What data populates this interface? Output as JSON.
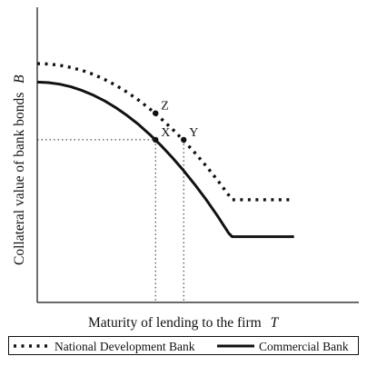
{
  "chart_data": {
    "type": "line",
    "title": "",
    "xlabel": "Maturity of lending to the firm",
    "xlabel_symbol": "T",
    "ylabel": "Collateral value of bank bonds",
    "ylabel_symbol": "B",
    "axis_ticks": false,
    "grid": false,
    "legend_position": "bottom",
    "series": [
      {
        "name": "National Development Bank",
        "style": "dotted",
        "color": "#111111",
        "x": [
          0,
          0.1,
          0.2,
          0.3,
          0.4,
          0.5,
          0.6,
          0.7,
          0.8,
          0.9,
          1.0,
          1.1,
          1.2,
          1.3,
          1.4,
          1.5,
          1.6,
          1.7,
          1.73,
          2.0,
          2.28
        ],
        "y": [
          0.96,
          0.957,
          0.946,
          0.927,
          0.901,
          0.866,
          0.822,
          0.771,
          0.711,
          0.643,
          0.567,
          0.483,
          0.392,
          0.293,
          0.187,
          0.072,
          -0.05,
          -0.18,
          -0.22,
          -0.22,
          -0.22
        ]
      },
      {
        "name": "Commercial Bank",
        "style": "solid",
        "color": "#111111",
        "x": [
          0,
          0.1,
          0.2,
          0.3,
          0.4,
          0.5,
          0.6,
          0.7,
          0.8,
          0.9,
          1.0,
          1.1,
          1.2,
          1.3,
          1.4,
          1.5,
          1.6,
          1.7,
          1.73,
          2.0,
          2.28
        ],
        "y": [
          0.8,
          0.795,
          0.782,
          0.759,
          0.727,
          0.686,
          0.636,
          0.577,
          0.509,
          0.432,
          0.345,
          0.25,
          0.145,
          0.032,
          -0.09,
          -0.22,
          -0.36,
          -0.51,
          -0.54,
          -0.54,
          -0.54
        ]
      }
    ],
    "points": [
      {
        "label": "Z",
        "x": 1.05,
        "y": 0.53
      },
      {
        "label": "X",
        "x": 1.05,
        "y": 0.3
      },
      {
        "label": "Y",
        "x": 1.3,
        "y": 0.3
      }
    ],
    "guides": [
      {
        "from_point": "X",
        "kind": "horizontal-to-y-axis"
      },
      {
        "from_point": "X",
        "kind": "vertical-to-x-axis"
      },
      {
        "from_point": "Y",
        "kind": "vertical-to-x-axis"
      }
    ]
  }
}
